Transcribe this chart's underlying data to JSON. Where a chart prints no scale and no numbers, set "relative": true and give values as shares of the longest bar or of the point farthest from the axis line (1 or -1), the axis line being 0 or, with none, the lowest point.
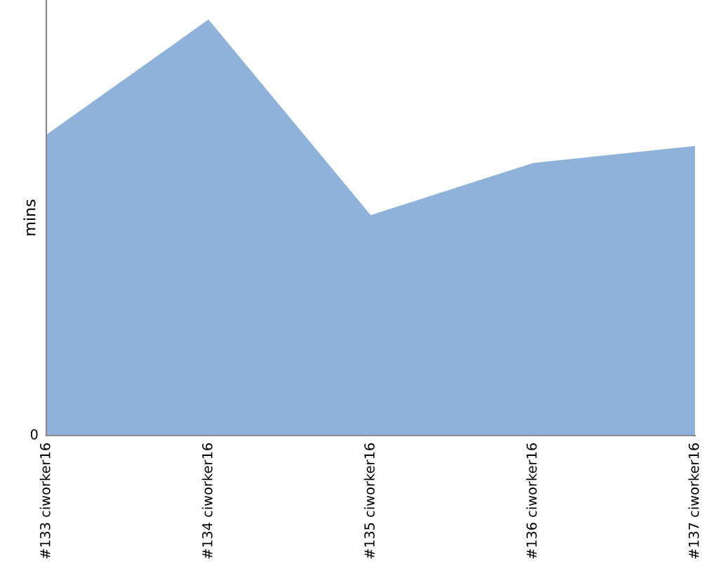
{
  "chart_data": {
    "type": "area",
    "ylabel": "mins",
    "relative": true,
    "annotations": [
      "0"
    ],
    "categories": [
      "#133 ciworker16",
      "#134 ciworker16",
      "#135 ciworker16",
      "#136 ciworker16",
      "#137 ciworker16"
    ],
    "series": [
      {
        "color": "#8fb2db",
        "values": [
          0.723,
          1,
          0.53,
          0.655,
          0.696
        ]
      }
    ]
  }
}
